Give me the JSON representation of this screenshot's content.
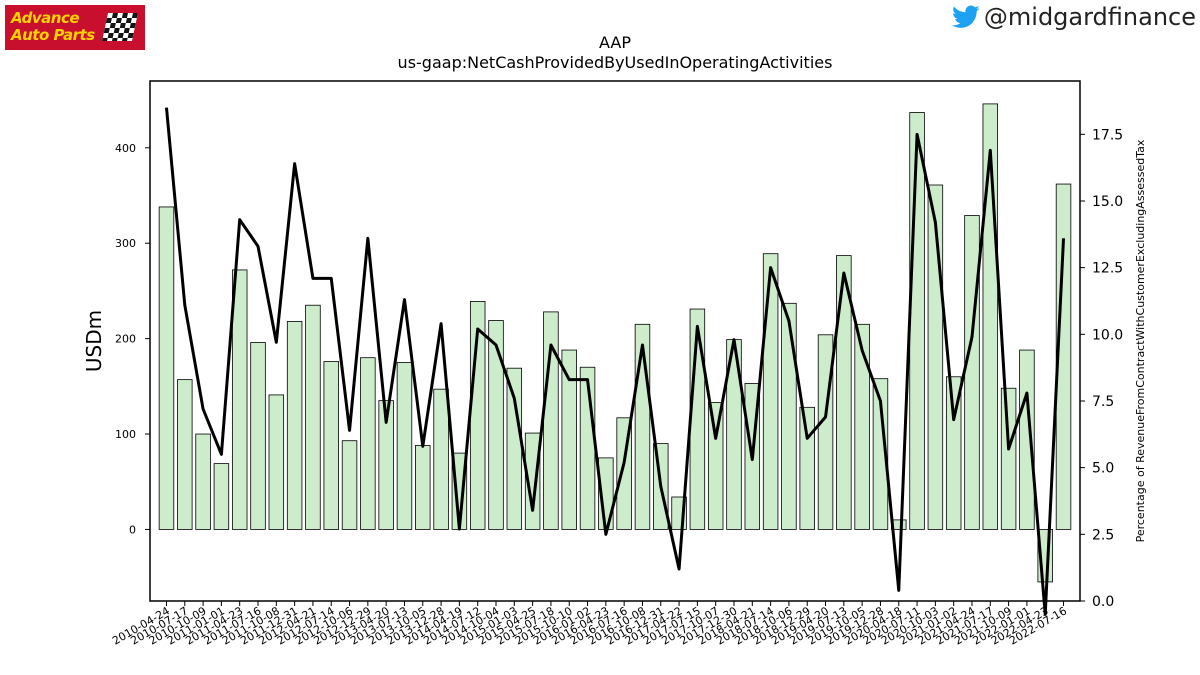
{
  "branding": {
    "logo_text": [
      "Advance",
      "Auto Parts"
    ],
    "twitter_handle": "@midgardfinance",
    "twitter_color": "#1da1f2"
  },
  "chart_data": {
    "type": "bar",
    "title": "AAP",
    "subtitle": "us-gaap:NetCashProvidedByUsedInOperatingActivities",
    "ylabel": "USDm",
    "ylabel_right": "Percentage of RevenueFromContractWithCustomerExcludingAssessedTax",
    "ylim": [
      -75,
      470
    ],
    "y2lim": [
      0,
      19.5
    ],
    "yticks": [
      0,
      100,
      200,
      300,
      400
    ],
    "y2ticks": [
      0.0,
      2.5,
      5.0,
      7.5,
      10.0,
      12.5,
      15.0,
      17.5
    ],
    "bar_color": "#cdeccc",
    "line_color": "#000000",
    "categories": [
      "2010-04-24",
      "2010-07-17",
      "2010-10-09",
      "2011-01-01",
      "2011-04-23",
      "2011-07-16",
      "2011-10-08",
      "2011-12-31",
      "2012-04-21",
      "2012-07-14",
      "2012-10-06",
      "2012-12-29",
      "2013-04-20",
      "2013-07-13",
      "2013-10-05",
      "2013-12-28",
      "2014-04-19",
      "2014-07-12",
      "2014-10-04",
      "2015-01-03",
      "2015-04-25",
      "2015-07-18",
      "2015-10-10",
      "2016-01-02",
      "2016-04-23",
      "2016-07-16",
      "2016-10-08",
      "2016-12-31",
      "2017-04-22",
      "2017-07-15",
      "2017-10-07",
      "2017-12-30",
      "2018-04-21",
      "2018-07-14",
      "2018-10-06",
      "2018-12-29",
      "2019-04-20",
      "2019-07-13",
      "2019-10-05",
      "2019-12-28",
      "2020-04-18",
      "2020-07-11",
      "2020-10-03",
      "2021-01-02",
      "2021-04-24",
      "2021-07-17",
      "2021-10-09",
      "2022-01-01",
      "2022-04-23",
      "2022-07-16"
    ],
    "series": [
      {
        "name": "",
        "kind": "bar",
        "axis": "left",
        "values": [
          338,
          157,
          100,
          69,
          272,
          196,
          141,
          218,
          235,
          176,
          93,
          180,
          135,
          175,
          88,
          147,
          80,
          239,
          219,
          169,
          101,
          228,
          188,
          170,
          75,
          117,
          215,
          90,
          34,
          231,
          133,
          199,
          153,
          289,
          237,
          128,
          204,
          287,
          215,
          158,
          10,
          437,
          361,
          160,
          329,
          446,
          148,
          188,
          -55,
          362
        ]
      },
      {
        "name": "",
        "kind": "line",
        "axis": "right",
        "values": [
          18.5,
          11.1,
          7.2,
          5.5,
          14.3,
          13.3,
          9.7,
          16.4,
          12.1,
          12.1,
          6.4,
          13.6,
          6.7,
          11.3,
          5.8,
          10.4,
          2.7,
          10.2,
          9.6,
          7.6,
          3.4,
          9.6,
          8.3,
          8.3,
          2.5,
          5.2,
          9.6,
          4.3,
          1.2,
          10.3,
          6.1,
          9.8,
          5.3,
          12.5,
          10.5,
          6.1,
          6.9,
          12.3,
          9.4,
          7.5,
          0.4,
          17.5,
          14.2,
          6.8,
          9.9,
          16.9,
          5.7,
          7.8,
          -0.5,
          13.6
        ]
      }
    ]
  }
}
